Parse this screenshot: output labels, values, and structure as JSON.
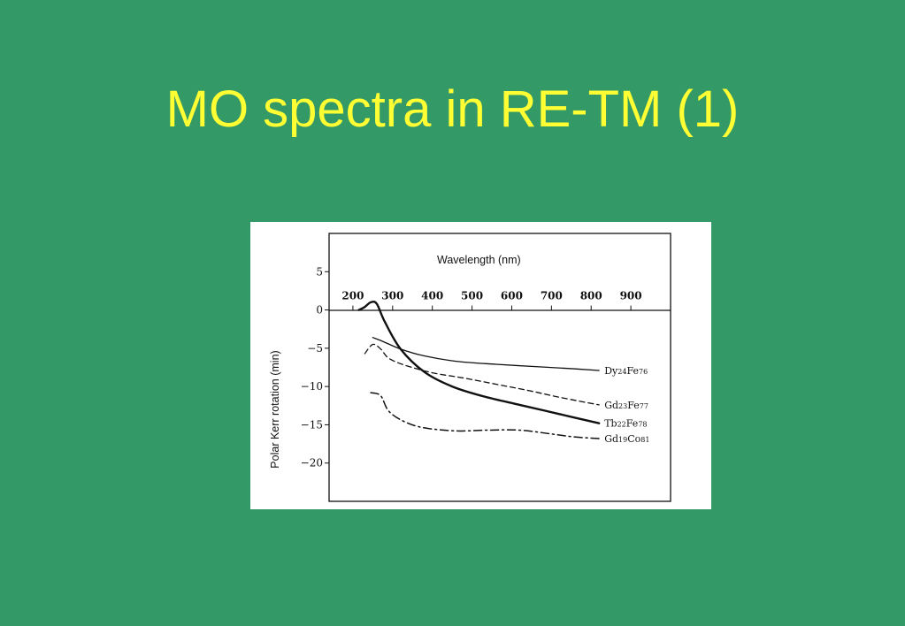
{
  "slide": {
    "title": "MO spectra in RE-TM (1)"
  },
  "colors": {
    "background": "#339966",
    "title": "#ffff33",
    "figure_background": "#ffffff",
    "ink": "#111111"
  },
  "chart_data": {
    "type": "line",
    "title": "",
    "xlabel": "Wavelength (nm)",
    "ylabel": "Polar Kerr rotation (min)",
    "xlim": [
      140,
      1000
    ],
    "ylim": [
      -25,
      10
    ],
    "x_ticks": [
      "200",
      "300",
      "400",
      "500",
      "600",
      "700",
      "800",
      "900"
    ],
    "x_tick_values": [
      200,
      300,
      400,
      500,
      600,
      700,
      800,
      900
    ],
    "y_ticks": [
      "5",
      "0",
      "−5",
      "−10",
      "−15",
      "−20"
    ],
    "y_tick_values": [
      5,
      0,
      -5,
      -10,
      -15,
      -20
    ],
    "x_axis_position": "top, at y = 0",
    "grid": false,
    "legend": "inline labels at right end of each curve",
    "series": [
      {
        "name": "Dy24Fe76",
        "label_parts": [
          "Dy",
          "24",
          "Fe",
          "76"
        ],
        "style": "solid-thin",
        "x": [
          250,
          275,
          320,
          380,
          460,
          560,
          660,
          760,
          820
        ],
        "y": [
          -3.6,
          -4.1,
          -5.1,
          -6.0,
          -6.7,
          -7.1,
          -7.4,
          -7.7,
          -7.9
        ]
      },
      {
        "name": "Gd23Fe77",
        "label_parts": [
          "Gd",
          "23",
          "Fe",
          "77"
        ],
        "style": "dashed-thin",
        "x": [
          230,
          250,
          270,
          290,
          330,
          400,
          480,
          560,
          640,
          720,
          820
        ],
        "y": [
          -5.7,
          -4.5,
          -5.1,
          -6.3,
          -7.2,
          -8.2,
          -8.9,
          -9.7,
          -10.5,
          -11.4,
          -12.4
        ]
      },
      {
        "name": "Tb22Fe78",
        "label_parts": [
          "Tb",
          "22",
          "Fe",
          "78"
        ],
        "style": "solid-thick",
        "x": [
          215,
          230,
          245,
          260,
          280,
          320,
          380,
          450,
          530,
          620,
          720,
          820
        ],
        "y": [
          0.0,
          0.4,
          1.0,
          0.8,
          -1.5,
          -5.1,
          -8.1,
          -10.0,
          -11.3,
          -12.4,
          -13.6,
          -14.8
        ]
      },
      {
        "name": "Gd19Co81",
        "label_parts": [
          "Gd",
          "19",
          "Co",
          "81"
        ],
        "style": "dash-dot",
        "x": [
          245,
          270,
          290,
          330,
          380,
          460,
          540,
          620,
          700,
          760,
          820
        ],
        "y": [
          -10.8,
          -11.2,
          -13.2,
          -14.6,
          -15.4,
          -15.8,
          -15.7,
          -15.7,
          -16.2,
          -16.6,
          -16.8
        ]
      }
    ]
  }
}
